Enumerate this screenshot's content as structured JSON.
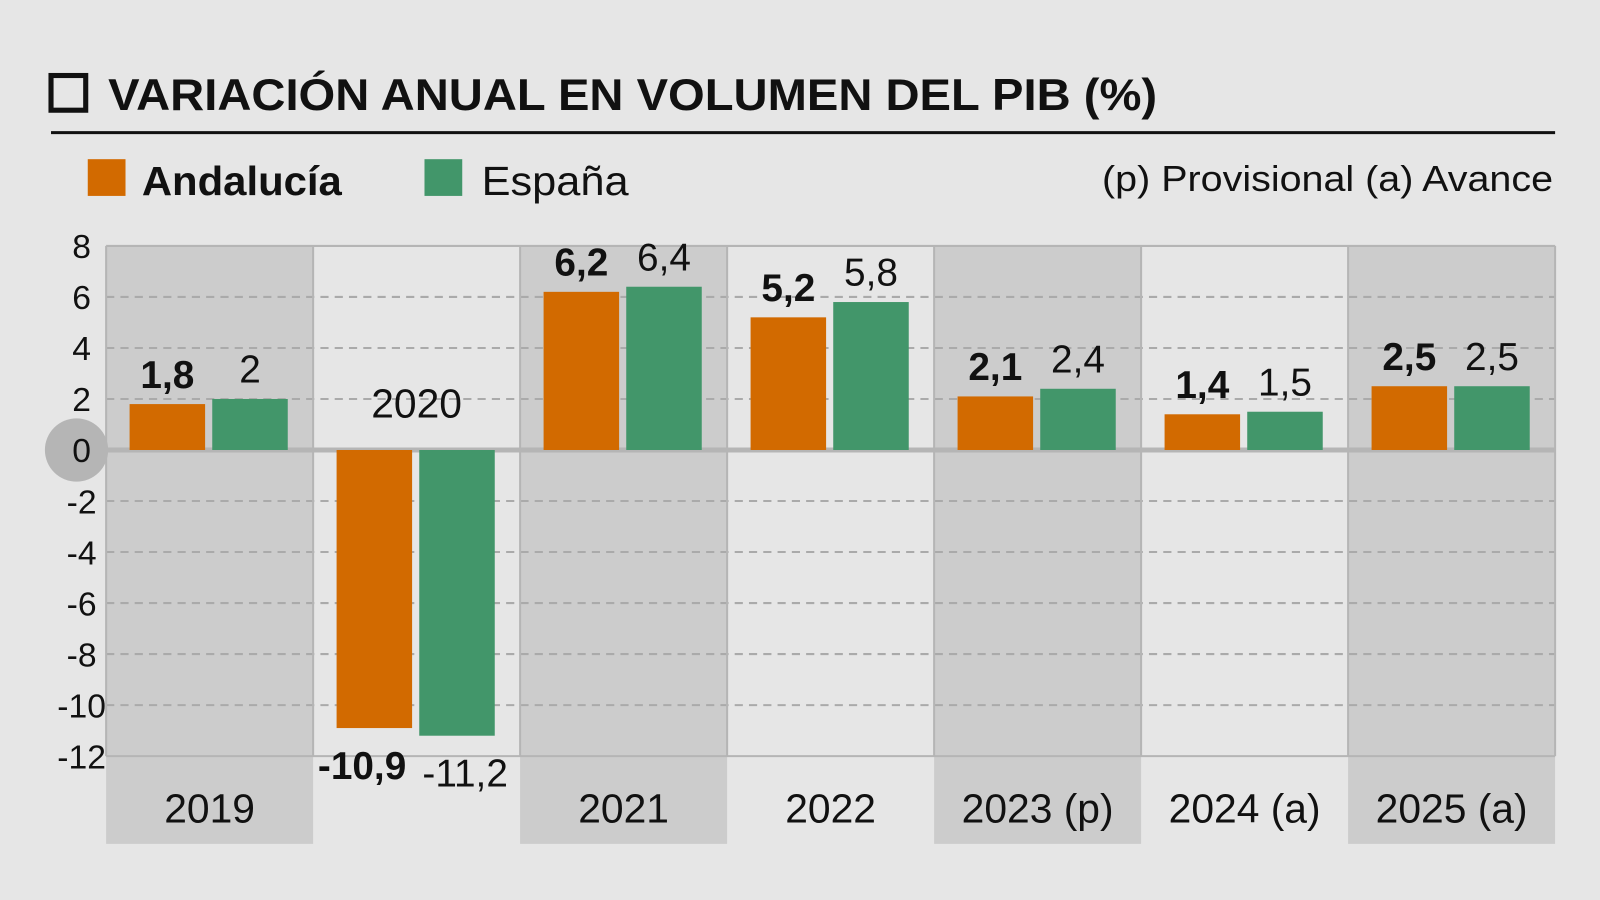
{
  "chart_data": {
    "type": "bar",
    "title": "VARIACIÓN ANUAL EN VOLUMEN DEL PIB (%)",
    "note": "(p) Provisional (a) Avance",
    "categories": [
      "2019",
      "2020",
      "2021",
      "2022",
      "2023 (p)",
      "2024 (a)",
      "2025 (a)"
    ],
    "series": [
      {
        "name": "Andalucía",
        "color": "#d26a00",
        "values": [
          1.8,
          -10.9,
          6.2,
          5.2,
          2.1,
          1.4,
          2.5
        ],
        "labels": [
          "1,8",
          "-10,9",
          "6,2",
          "5,2",
          "2,1",
          "1,4",
          "2,5"
        ]
      },
      {
        "name": "España",
        "color": "#42966a",
        "values": [
          2,
          -11.2,
          6.4,
          5.8,
          2.4,
          1.5,
          2.5
        ],
        "labels": [
          "2",
          "-11,2",
          "6,4",
          "5,8",
          "2,4",
          "1,5",
          "2,5"
        ]
      }
    ],
    "ylim": [
      -12,
      8
    ],
    "yticks": [
      "8",
      "6",
      "4",
      "2",
      "0",
      "-2",
      "-4",
      "-6",
      "-8",
      "-10",
      "-12"
    ],
    "grid": true,
    "legend_placement": "top-left",
    "band_colors": {
      "dark": "#cccccc",
      "light": "#e6e6e6"
    }
  }
}
